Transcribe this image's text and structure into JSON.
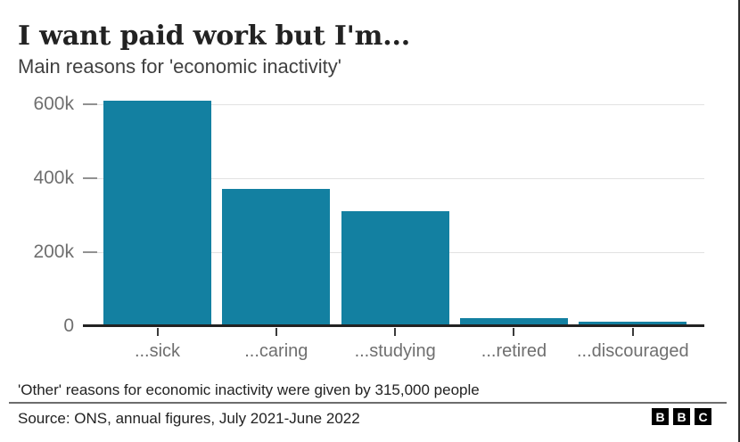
{
  "header": {
    "title": "I want paid work but I'm...",
    "subtitle": "Main reasons for 'economic inactivity'"
  },
  "chart_data": {
    "type": "bar",
    "title": "I want paid work but I'm...",
    "subtitle": "Main reasons for 'economic inactivity'",
    "categories": [
      "...sick",
      "...caring",
      "...studying",
      "...retired",
      "...discouraged"
    ],
    "values": [
      610000,
      372000,
      311000,
      22000,
      11000
    ],
    "xlabel": "",
    "ylabel": "",
    "ylim": [
      0,
      600000
    ],
    "yticks": [
      {
        "value": 0,
        "label": "0"
      },
      {
        "value": 200000,
        "label": "200k"
      },
      {
        "value": 400000,
        "label": "400k"
      },
      {
        "value": 600000,
        "label": "600k"
      }
    ],
    "grid": true,
    "legend": false,
    "bar_color": "#1380A1"
  },
  "footer": {
    "note": "'Other' reasons for economic inactivity were given by 315,000 people",
    "source": "Source: ONS, annual figures, July 2021-June 2022",
    "logo_blocks": [
      "B",
      "B",
      "C"
    ]
  },
  "colors": {
    "bar": "#1380A1",
    "gridline": "#e2e2e2",
    "axis": "#222222",
    "axis_label": "#6f6f6f",
    "title": "#222222",
    "subtitle": "#404040",
    "text": "#222222",
    "divider": "#6d6d6d"
  }
}
